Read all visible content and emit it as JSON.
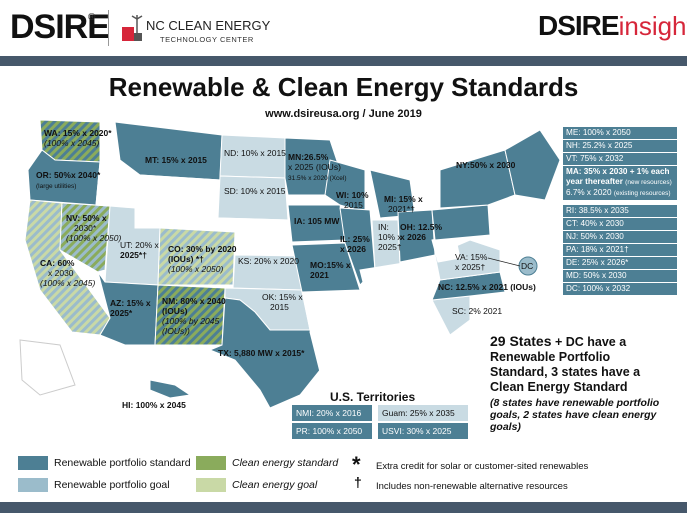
{
  "header": {
    "dsire_logo": "DSIRE",
    "registered": "®",
    "nc_line1": "NC CLEAN ENERGY",
    "nc_line2": "TECHNOLOGY CENTER",
    "insight_dsire": "DSIRE",
    "insight_word": "insight"
  },
  "title": "Renewable & Clean Energy Standards",
  "subtitle": "www.dsireusa.org / June 2019",
  "colors": {
    "rps_standard": "#4d7f94",
    "rps_goal": "#9bbccb",
    "ces_standard": "#8aab5c",
    "ces_goal": "#c9d9a6",
    "no_policy": "#ffffff",
    "header_bar": "#46586b"
  },
  "states": {
    "wa": {
      "line1": "WA: 15% x 2020*",
      "line2": "(100% x 2045)"
    },
    "or": {
      "line1": "OR: 50%x 2040*",
      "line2": "(large utilities)"
    },
    "mt": {
      "line1": "MT: 15% x 2015"
    },
    "nd": {
      "line1": "ND: 10% x 2015"
    },
    "sd": {
      "line1": "SD: 10% x 2015"
    },
    "mn": {
      "line1": "MN:26.5%",
      "line2": "x 2025 (IOUs)",
      "line3": "31.5% x 2020 (Xcel)"
    },
    "wi": {
      "line1": "WI: 10%",
      "line2": "2015"
    },
    "mi": {
      "line1": "MI: 15% x",
      "line2": "2021*†"
    },
    "nv": {
      "line1": "NV: 50% x",
      "line2": "2030*",
      "line3": "(100% x 2050)"
    },
    "ut": {
      "line1": "UT: 20% x",
      "line2": "2025*†"
    },
    "co": {
      "line1": "CO: 30% by 2020",
      "line2": "(IOUs) *†",
      "line3": "(100% x 2050)"
    },
    "ia": {
      "line1": "IA: 105 MW"
    },
    "il": {
      "line1": "IL: 25%",
      "line2": "x 2026"
    },
    "in": {
      "line1": "IN:",
      "line2": "10% x",
      "line3": "2025†"
    },
    "oh": {
      "line1": "OH: 12.5%",
      "line2": "x 2026"
    },
    "ny": {
      "line1": "NY:50% x 2030"
    },
    "ca": {
      "line1": "CA: 60%",
      "line2": "x 2030",
      "line3": "(100% x 2045)"
    },
    "ks": {
      "line1": "KS: 20% x 2020"
    },
    "mo": {
      "line1": "MO:15% x",
      "line2": "2021"
    },
    "va": {
      "line1": "VA: 15%",
      "line2": "x 2025†"
    },
    "dc": {
      "line1": "DC"
    },
    "az": {
      "line1": "AZ: 15% x",
      "line2": "2025*"
    },
    "nm": {
      "line1": "NM: 80% x 2040",
      "line2": "(IOUs)",
      "line3": "(100% by 2045",
      "line4": "(IOUs))"
    },
    "ok": {
      "line1": "OK: 15% x",
      "line2": "2015"
    },
    "nc": {
      "line1": "NC: 12.5% x 2021 (IOUs)"
    },
    "sc": {
      "line1": "SC: 2% 2021"
    },
    "tx": {
      "line1": "TX: 5,880 MW x 2015*"
    },
    "hi": {
      "line1": "HI: 100% x 2045"
    }
  },
  "northeast": [
    {
      "label": "ME: 100% x 2050",
      "type": "standard"
    },
    {
      "label": "NH: 25.2% x 2025",
      "type": "standard"
    },
    {
      "label": "VT: 75% x 2032",
      "type": "standard"
    },
    {
      "label": "MA: 35% x 2030 + 1% each year thereafter",
      "note": "(new resources)",
      "label2": "6.7% x 2020",
      "note2": "(existing resources)",
      "type": "standard"
    },
    {
      "label": "RI: 38.5% x 2035",
      "type": "standard"
    },
    {
      "label": "CT: 40% x 2030",
      "type": "standard"
    },
    {
      "label": "NJ: 50% x 2030",
      "type": "standard"
    },
    {
      "label": "PA: 18% x 2021†",
      "type": "standard"
    },
    {
      "label": "DE: 25% x 2026*",
      "type": "standard"
    },
    {
      "label": "MD: 50% x 2030",
      "type": "standard"
    },
    {
      "label": "DC: 100% x 2032",
      "type": "standard"
    }
  ],
  "territories": {
    "title": "U.S. Territories",
    "nmi": "NMI: 20% x 2016",
    "guam": "Guam: 25% x 2035",
    "pr": "PR: 100% x 2050",
    "usvi": "USVI: 30% x 2025"
  },
  "summary": {
    "line1_bold": "29 States",
    "line1_rest": " + DC have a Renewable Portfolio Standard, 3 states have a Clean Energy Standard",
    "italic": "(8 states have renewable portfolio goals, 2 states have clean energy goals)"
  },
  "legend": {
    "rps_standard": "Renewable portfolio standard",
    "rps_goal": "Renewable portfolio goal",
    "ces_standard": "Clean energy standard",
    "ces_goal": "Clean energy goal",
    "asterisk_symbol": "*",
    "asterisk_note": "Extra credit for solar or customer-sited renewables",
    "dagger_symbol": "†",
    "dagger_note": "Includes non-renewable alternative resources"
  }
}
